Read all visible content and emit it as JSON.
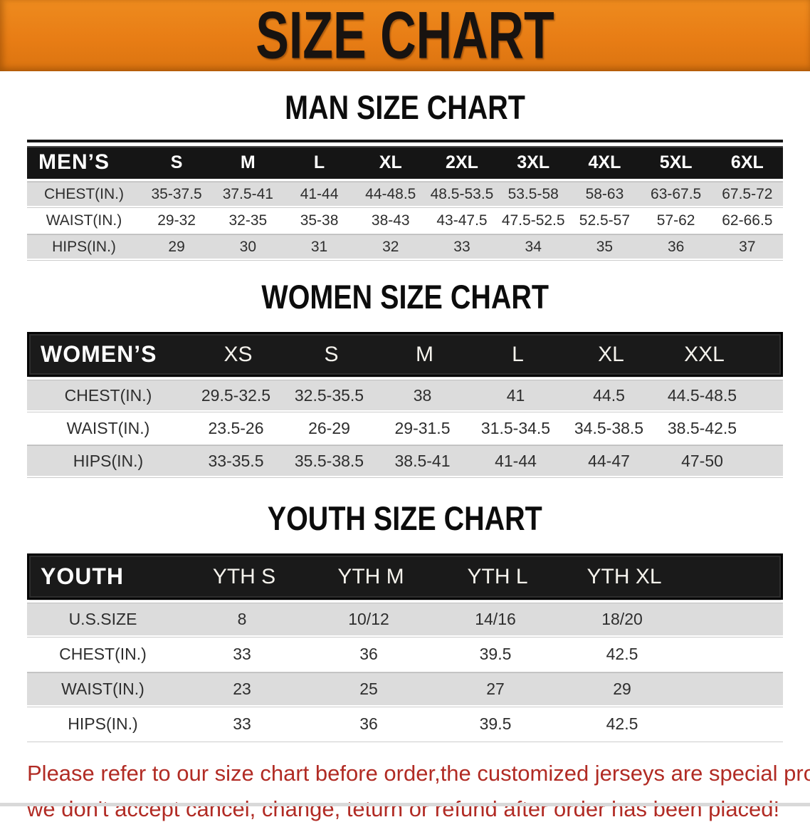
{
  "banner": {
    "title": "SIZE CHART",
    "bg_color": "#e87d15",
    "text_color": "#181310"
  },
  "colors": {
    "header_black": "#151515",
    "row_gray": "#dcdcdc",
    "row_white": "#ffffff",
    "disclaimer_red": "#b12b24"
  },
  "sections": [
    {
      "heading": "MAN SIZE CHART",
      "table": {
        "label": "MEN’S",
        "columns": [
          "S",
          "M",
          "L",
          "XL",
          "2XL",
          "3XL",
          "4XL",
          "5XL",
          "6XL"
        ],
        "rows": [
          {
            "label": "CHEST(IN.)",
            "values": [
              "35-37.5",
              "37.5-41",
              "41-44",
              "44-48.5",
              "48.5-53.5",
              "53.5-58",
              "58-63",
              "63-67.5",
              "67.5-72"
            ]
          },
          {
            "label": "WAIST(IN.)",
            "values": [
              "29-32",
              "32-35",
              "35-38",
              "38-43",
              "43-47.5",
              "47.5-52.5",
              "52.5-57",
              "57-62",
              "62-66.5"
            ]
          },
          {
            "label": "HIPS(IN.)",
            "values": [
              "29",
              "30",
              "31",
              "32",
              "33",
              "34",
              "35",
              "36",
              "37"
            ]
          }
        ]
      }
    },
    {
      "heading": "WOMEN SIZE CHART",
      "table": {
        "label": "WOMEN’S",
        "columns": [
          "XS",
          "S",
          "M",
          "L",
          "XL",
          "XXL"
        ],
        "rows": [
          {
            "label": "CHEST(IN.)",
            "values": [
              "29.5-32.5",
              "32.5-35.5",
              "38",
              "41",
              "44.5",
              "44.5-48.5"
            ]
          },
          {
            "label": "WAIST(IN.)",
            "values": [
              "23.5-26",
              "26-29",
              "29-31.5",
              "31.5-34.5",
              "34.5-38.5",
              "38.5-42.5"
            ]
          },
          {
            "label": "HIPS(IN.)",
            "values": [
              "33-35.5",
              "35.5-38.5",
              "38.5-41",
              "41-44",
              "44-47",
              "47-50"
            ]
          }
        ]
      }
    },
    {
      "heading": "YOUTH SIZE CHART",
      "table": {
        "label": "YOUTH",
        "columns": [
          "YTH S",
          "YTH M",
          "YTH L",
          "YTH XL"
        ],
        "rows": [
          {
            "label": "U.S.SIZE",
            "values": [
              "8",
              "10/12",
              "14/16",
              "18/20"
            ]
          },
          {
            "label": "CHEST(IN.)",
            "values": [
              "33",
              "36",
              "39.5",
              "42.5"
            ]
          },
          {
            "label": "WAIST(IN.)",
            "values": [
              "23",
              "25",
              "27",
              "29"
            ]
          },
          {
            "label": "HIPS(IN.)",
            "values": [
              "33",
              "36",
              "39.5",
              "42.5"
            ]
          }
        ]
      }
    }
  ],
  "disclaimer": {
    "line1": "Please refer to our size chart before order,the customized jerseys are special products,",
    "line2": "we don't accept cancel, change, teturn or refund after order has been placed!"
  }
}
